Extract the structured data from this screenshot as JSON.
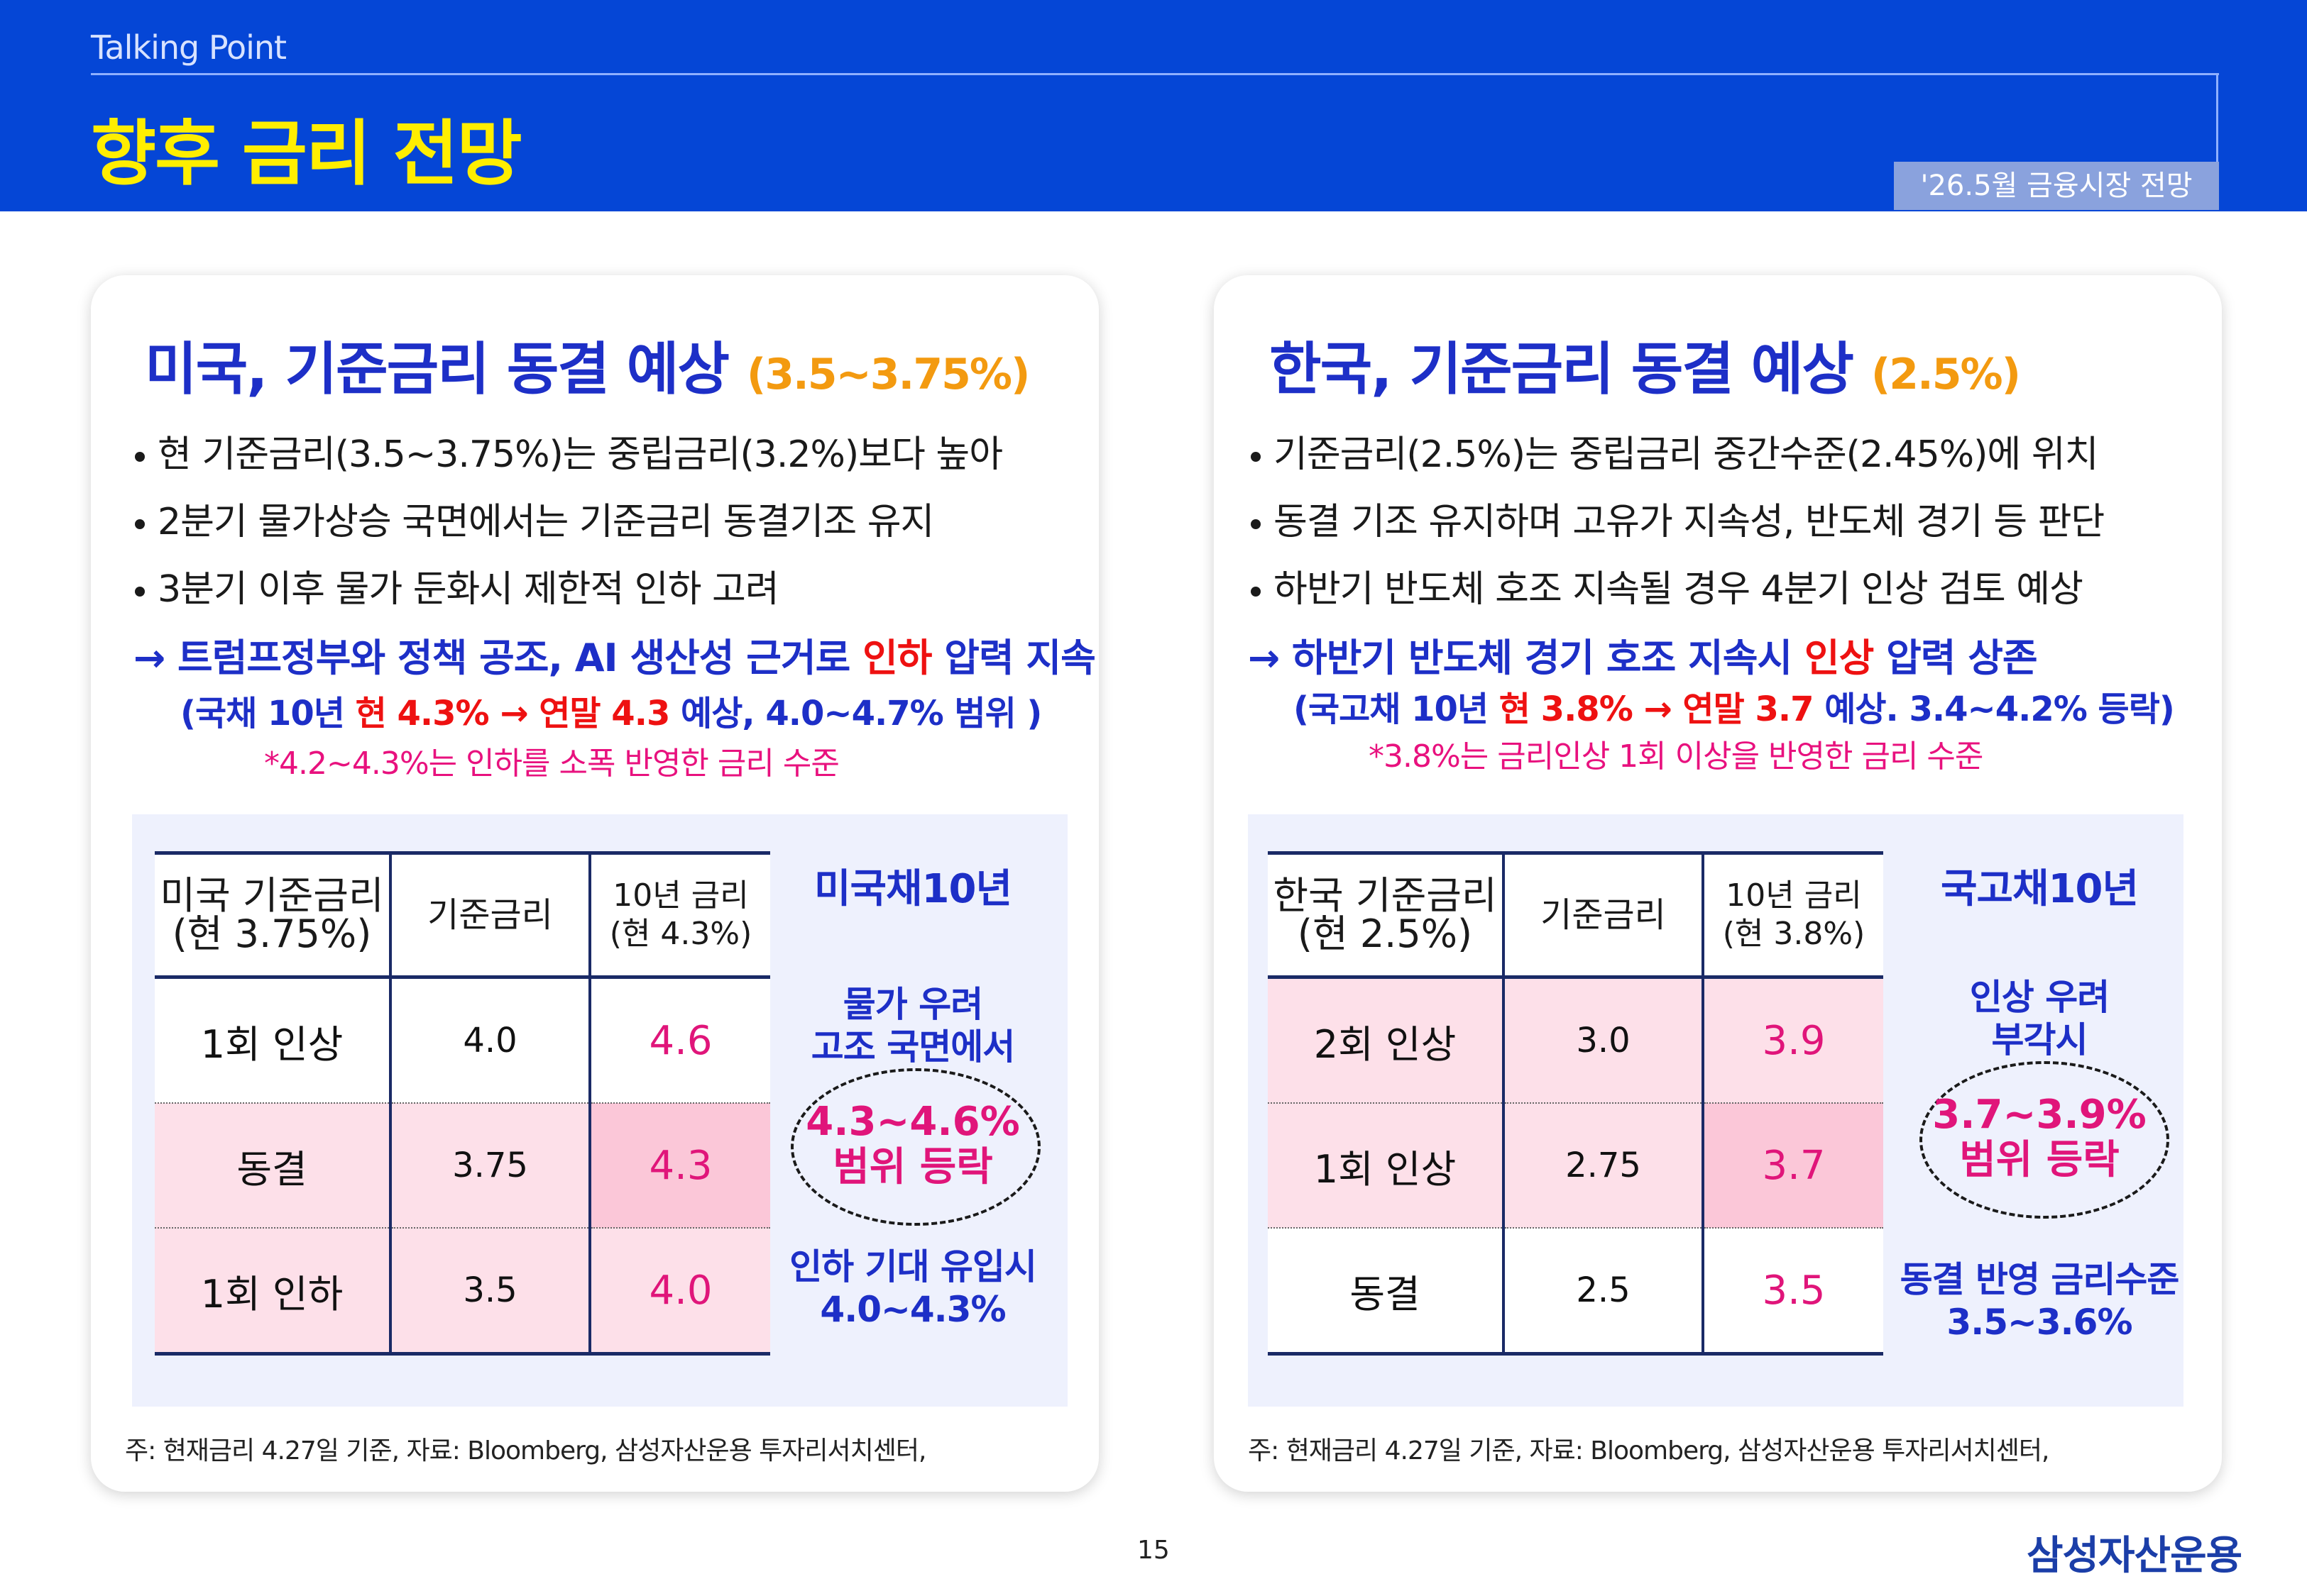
{
  "header": {
    "section_label": "Talking Point",
    "title": "향후 금리 전망",
    "date_badge": "'26.5월 금융시장 전망"
  },
  "left": {
    "title": "미국, 기준금리 동결 예상",
    "title_rate": "(3.5~3.75%)",
    "bullets": [
      "현 기준금리(3.5~3.75%)는 중립금리(3.2%)보다 높아",
      "2분기 물가상승 국면에서는 기준금리 동결기조 유지",
      "3분기 이후 물가 둔화시 제한적 인하 고려"
    ],
    "conclusion": {
      "pre": "→  트럼프정부와 정책 공조, AI 생산성 근거로 ",
      "highlight": "인하",
      "post": " 압력 지속"
    },
    "sub": {
      "a": "(국채 10년 ",
      "b": "현 4.3% → 연말 4.3",
      "c": " 예상, 4.0~4.7% 범위 )"
    },
    "note": "*4.2~4.3%는 인하를 소폭 반영한 금리 수준",
    "table": {
      "headers": [
        "미국 기준금리\n(현 3.75%)",
        "기준금리",
        "10년 금리\n(현 4.3%)"
      ],
      "rows": [
        [
          "1회 인상",
          "4.0",
          "4.6"
        ],
        [
          "동결",
          "3.75",
          "4.3"
        ],
        [
          "1회 인하",
          "3.5",
          "4.0"
        ]
      ],
      "row_bg": [
        "#ffffff",
        "#fde0e9",
        "#fde0e9"
      ],
      "highlight_cell_bg": "#fbc7d8"
    },
    "side": {
      "title": "미국채10년",
      "top_text": "물가 우려\n고조 국면에서",
      "range": "4.3~4.6%\n범위 등락",
      "bottom_text": "인하 기대 유입시\n4.0~4.3%"
    },
    "footnote": "주: 현재금리 4.27일 기준, 자료: Bloomberg, 삼성자산운용 투자리서치센터,"
  },
  "right": {
    "title": "한국, 기준금리 동결 예상",
    "title_rate": "(2.5%)",
    "bullets": [
      "기준금리(2.5%)는 중립금리 중간수준(2.45%)에 위치",
      "동결 기조 유지하며 고유가 지속성, 반도체 경기 등 판단",
      "하반기 반도체 호조 지속될 경우 4분기 인상 검토 예상"
    ],
    "conclusion": {
      "pre": "→ 하반기 반도체 경기 호조 지속시 ",
      "highlight": "인상",
      "post": " 압력 상존"
    },
    "sub": {
      "a": "(국고채 10년 ",
      "b": "현 3.8% →  연말 3.7",
      "c": " 예상. 3.4~4.2% 등락)"
    },
    "note": "*3.8%는 금리인상 1회 이상을 반영한 금리 수준",
    "table": {
      "headers": [
        "한국 기준금리\n(현 2.5%)",
        "기준금리",
        "10년 금리\n(현 3.8%)"
      ],
      "rows": [
        [
          "2회 인상",
          "3.0",
          "3.9"
        ],
        [
          "1회 인상",
          "2.75",
          "3.7"
        ],
        [
          "동결",
          "2.5",
          "3.5"
        ]
      ],
      "row_bg": [
        "#fde0e9",
        "#fde0e9",
        "#ffffff"
      ],
      "highlight_cell_bg": "#fbc7d8"
    },
    "side": {
      "title": "국고채10년",
      "top_text": "인상 우려\n부각시",
      "range": "3.7~3.9%\n범위 등락",
      "bottom_text": "동결 반영 금리수준\n3.5~3.6%"
    },
    "footnote": "주: 현재금리 4.27일 기준, 자료: Bloomberg, 삼성자산운용 투자리서치센터,"
  },
  "footer": {
    "page_number": "15",
    "logo_text": "삼성자산운용"
  }
}
